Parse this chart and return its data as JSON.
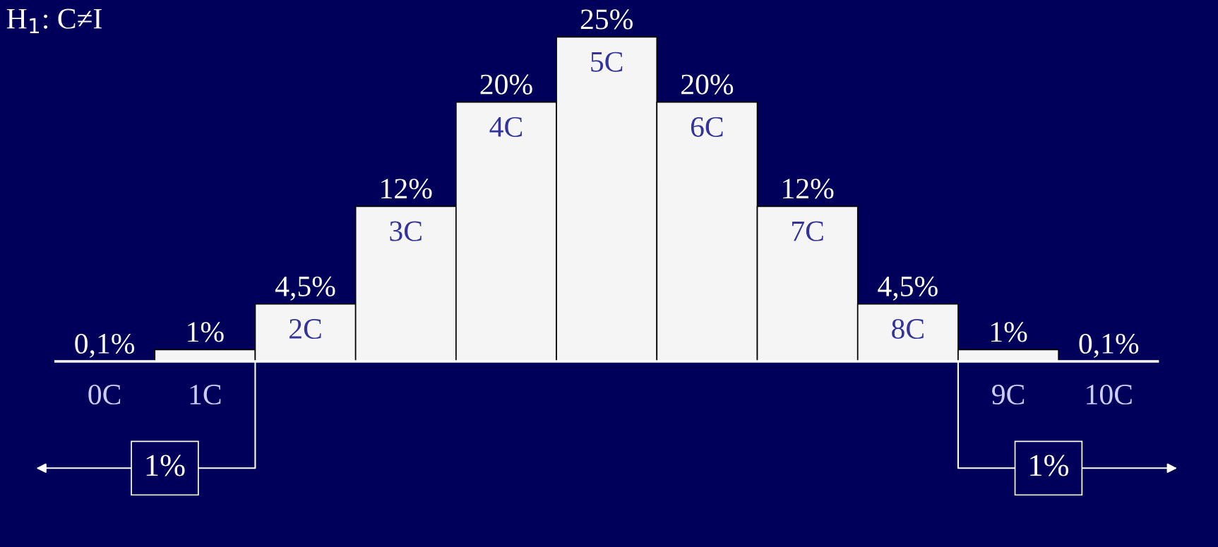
{
  "chart_data": {
    "type": "bar",
    "title": "H$_{1}$: C≠I",
    "categories": [
      "0C",
      "1C",
      "2C",
      "3C",
      "4C",
      "5C",
      "6C",
      "7C",
      "8C",
      "9C",
      "10C"
    ],
    "values": [
      0.1,
      1,
      4.5,
      12,
      20,
      25,
      20,
      12,
      4.5,
      1,
      0.1
    ],
    "value_labels": [
      "0,1%",
      "1%",
      "4,5%",
      "12%",
      "20%",
      "25%",
      "20%",
      "12%",
      "4,5%",
      "1%",
      "0,1%"
    ],
    "color": "#f5f5f5",
    "annotations": [
      "1%",
      "1%"
    ]
  }
}
